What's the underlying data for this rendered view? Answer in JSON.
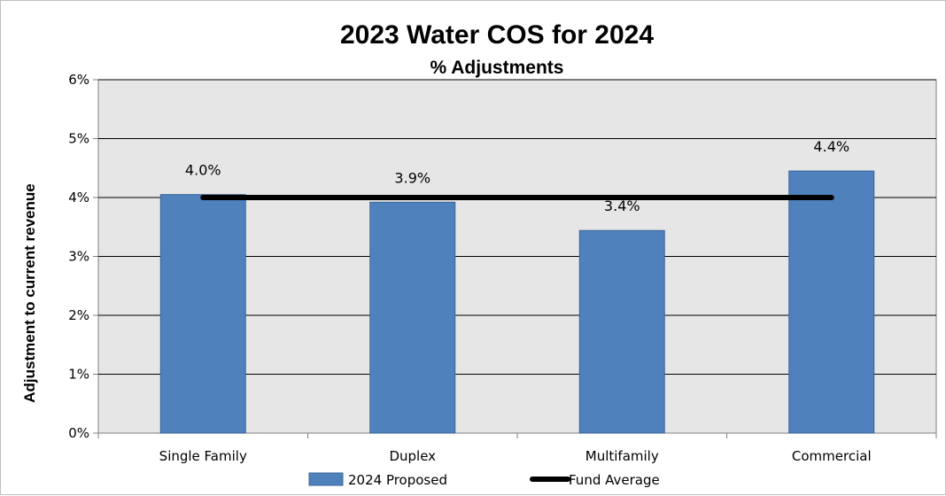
{
  "chart_data": {
    "type": "bar",
    "title": "2023 Water COS for 2024",
    "subtitle": "% Adjustments",
    "ylabel": "Adjustment to current revenue",
    "xlabel": "",
    "categories": [
      "Single Family",
      "Duplex",
      "Multifamily",
      "Commercial"
    ],
    "ylim": [
      0,
      6
    ],
    "yticks": [
      "0%",
      "1%",
      "2%",
      "3%",
      "4%",
      "5%",
      "6%"
    ],
    "grid": true,
    "legend_position": "bottom",
    "series": [
      {
        "name": "2024 Proposed",
        "kind": "bar",
        "values": [
          4.05,
          3.92,
          3.44,
          4.45
        ],
        "labels": [
          "4.0%",
          "3.9%",
          "3.4%",
          "4.4%"
        ],
        "color": "#4f81bd"
      },
      {
        "name": "Fund Average",
        "kind": "line",
        "values": [
          4.0,
          4.0,
          4.0,
          4.0
        ],
        "color": "#000000"
      }
    ],
    "plot_background": "#e6e6e6"
  }
}
